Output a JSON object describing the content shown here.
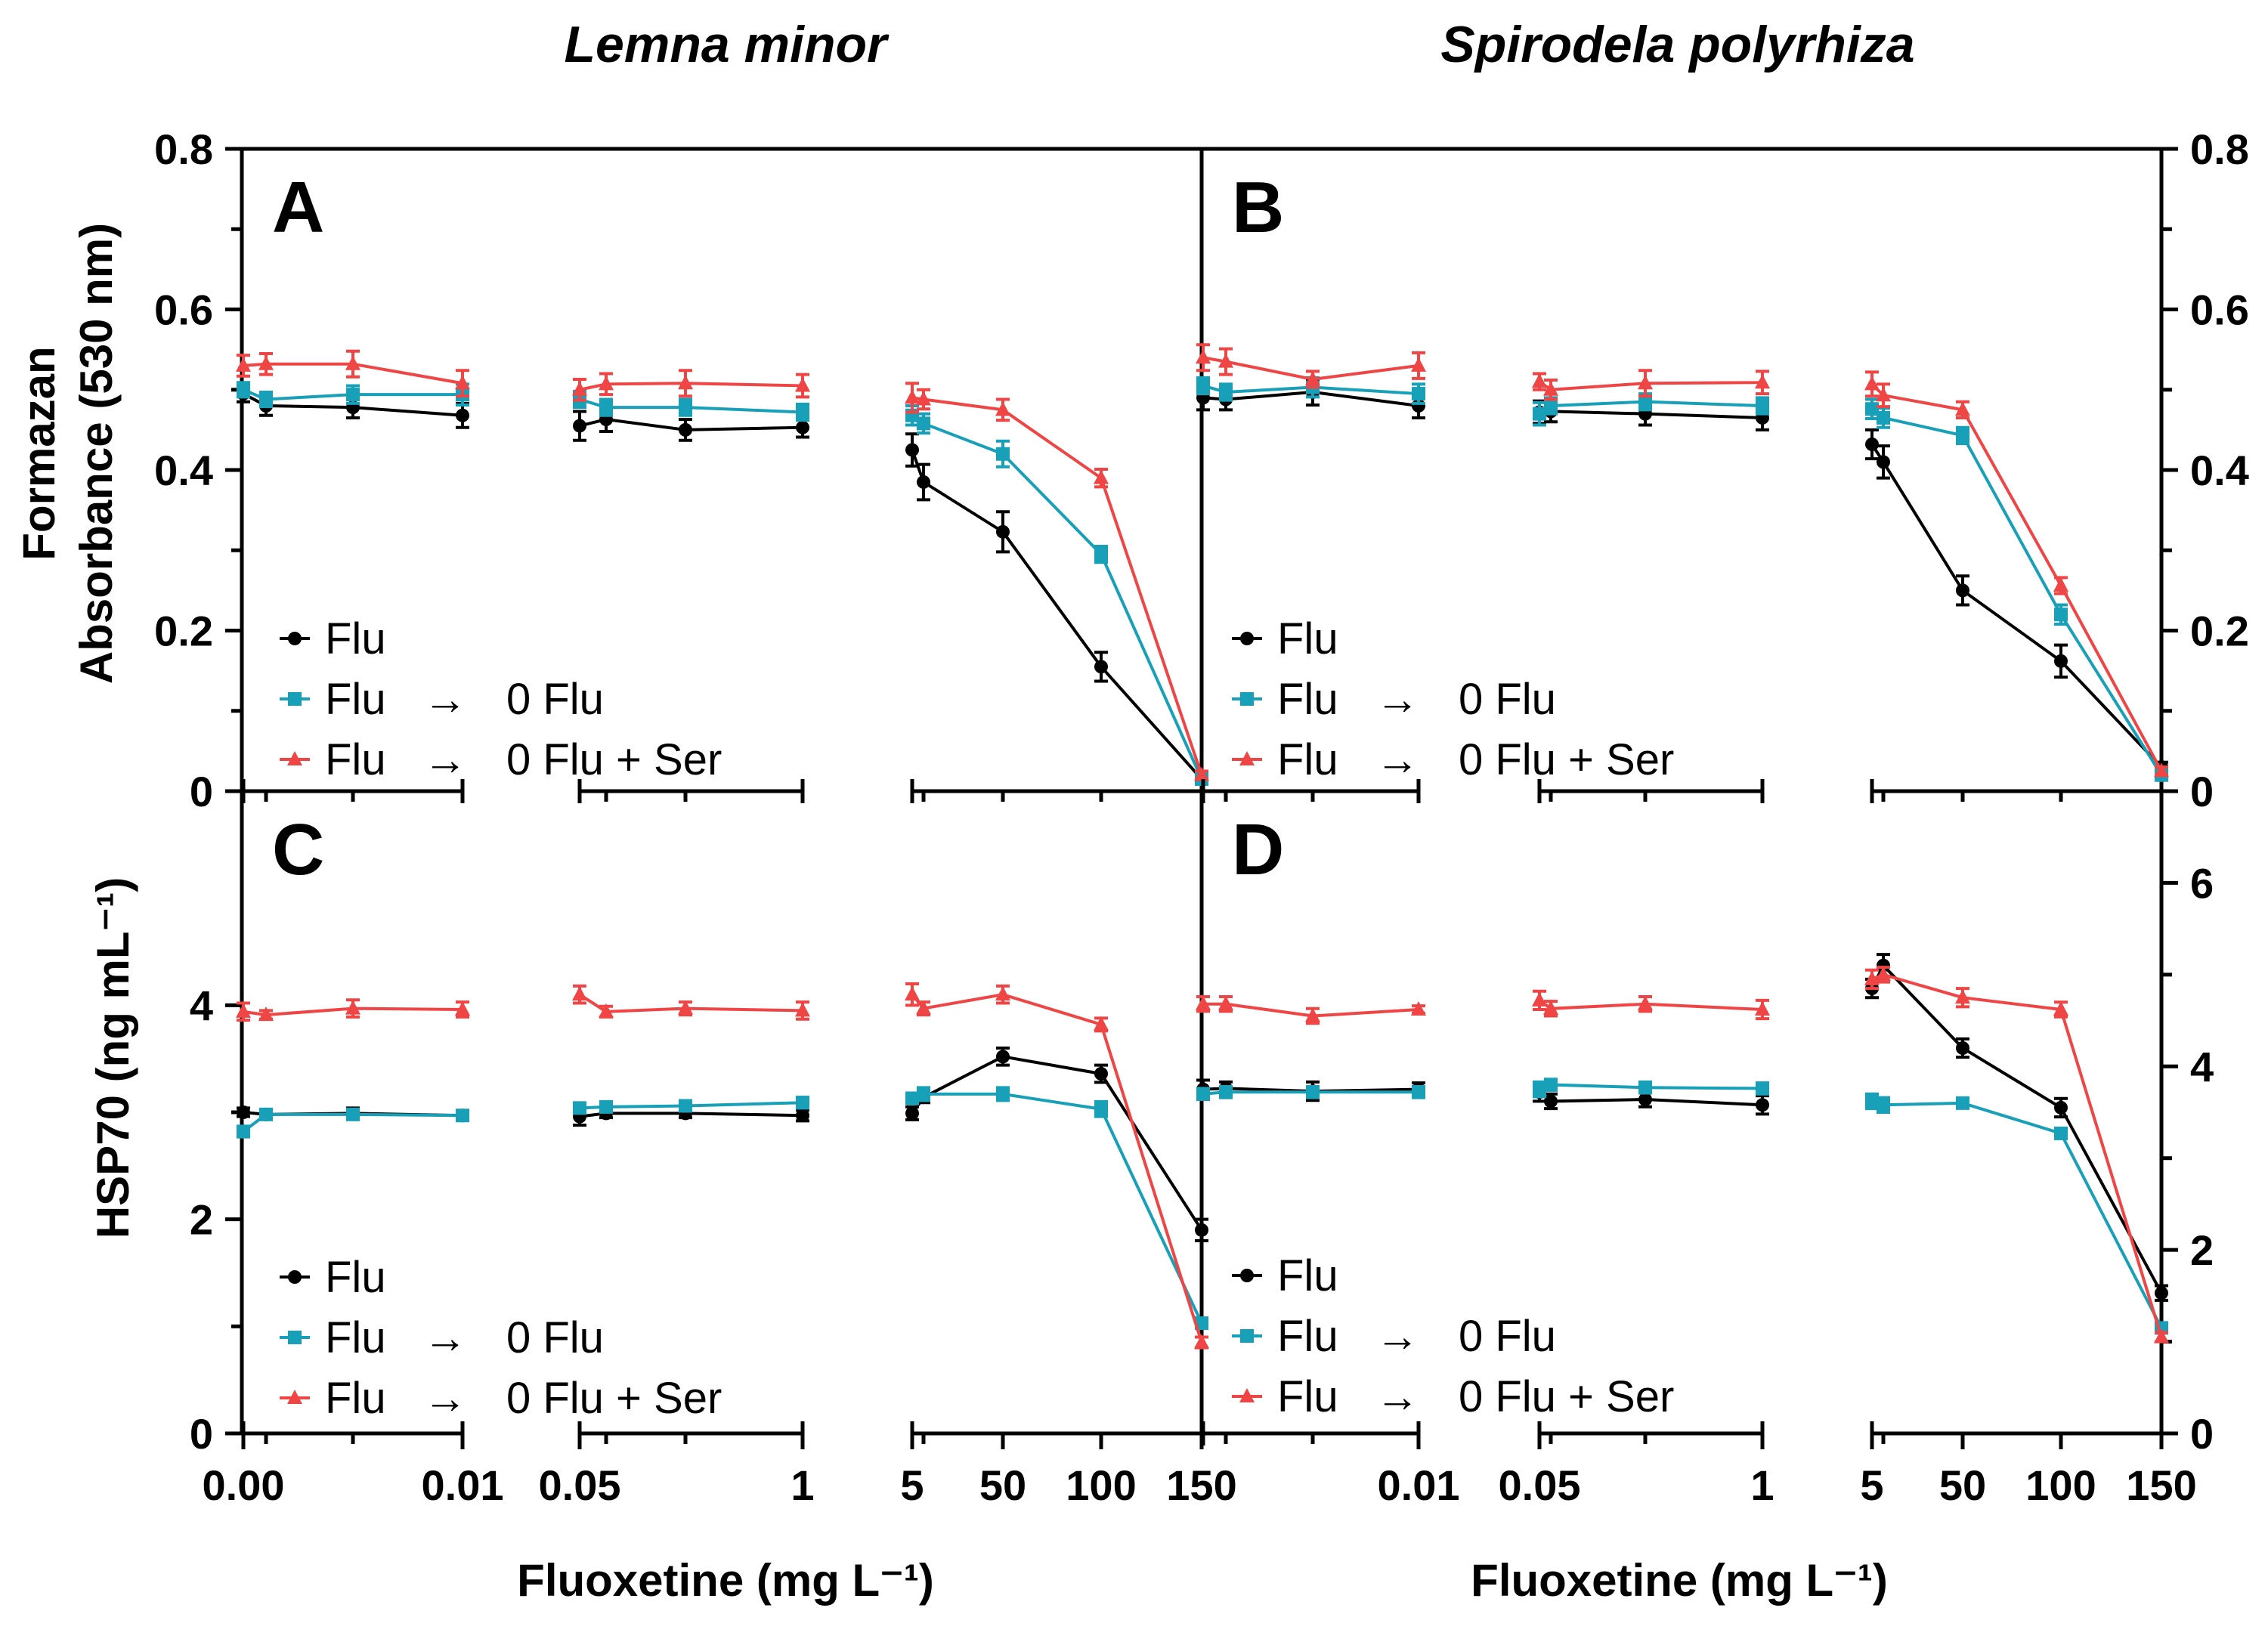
{
  "figure": {
    "left_title": "Lemna minor",
    "right_title": "Spirodela polyrhiza",
    "ylabel_top_line1": "Formazan",
    "ylabel_top_line2": "Absorbance (530 nm)",
    "ylabel_bottom": "HSP70 (ng mL⁻¹)",
    "xlabel_left": "Fluoxetine (mg L⁻¹)",
    "xlabel_right": "Fluoxetine (mg L⁻¹)",
    "legend_entries": [
      {
        "label": "Flu",
        "arrow": "",
        "target": "",
        "color": "#000000",
        "marker": "circle"
      },
      {
        "label": "Flu",
        "arrow": "→",
        "target": "0 Flu",
        "color": "#18a0b8",
        "marker": "square"
      },
      {
        "label": "Flu",
        "arrow": "→",
        "target": "0 Flu + Ser",
        "color": "#ef4545",
        "marker": "triangle"
      }
    ],
    "x_tick_labels": [
      "0.00",
      "0.01",
      "0.05",
      "1",
      "5",
      "50",
      "100",
      "150"
    ],
    "colors": {
      "flu": "#000000",
      "flu_0flu": "#18a0b8",
      "flu_0flu_ser": "#ef4545"
    }
  },
  "chart_data": [
    {
      "panel": "A",
      "type": "line",
      "species": "Lemna minor",
      "x_scale": "broken",
      "ylim": [
        0,
        0.8
      ],
      "yticks": [
        "0",
        "0.2",
        "0.4",
        "0.6",
        "0.8"
      ],
      "yaxis_side": "left",
      "series": [
        {
          "name": "Flu",
          "color": "#000000",
          "marker": "circle",
          "points": [
            [
              0,
              0.495
            ],
            [
              0.001,
              0.48
            ],
            [
              0.005,
              0.478
            ],
            [
              0.01,
              0.468
            ],
            [
              0.05,
              0.455
            ],
            [
              0.1,
              0.463
            ],
            [
              0.5,
              0.45
            ],
            [
              1,
              0.453
            ],
            [
              5,
              0.425
            ],
            [
              10,
              0.385
            ],
            [
              50,
              0.323
            ],
            [
              100,
              0.155
            ],
            [
              150,
              0.015
            ]
          ],
          "err": [
            0.01,
            0.012,
            0.013,
            0.015,
            0.018,
            0.015,
            0.013,
            0.012,
            0.02,
            0.022,
            0.025,
            0.018,
            0.006
          ]
        },
        {
          "name": "Flu → 0 Flu",
          "color": "#18a0b8",
          "marker": "square",
          "points": [
            [
              0,
              0.5
            ],
            [
              0.001,
              0.488
            ],
            [
              0.005,
              0.494
            ],
            [
              0.01,
              0.494
            ],
            [
              0.05,
              0.488
            ],
            [
              0.1,
              0.478
            ],
            [
              0.5,
              0.478
            ],
            [
              1,
              0.472
            ],
            [
              5,
              0.468
            ],
            [
              10,
              0.458
            ],
            [
              50,
              0.42
            ],
            [
              100,
              0.295
            ],
            [
              150,
              0.015
            ]
          ],
          "err": [
            0.009,
            0.009,
            0.011,
            0.013,
            0.01,
            0.01,
            0.01,
            0.01,
            0.012,
            0.012,
            0.016,
            0.01,
            0.005
          ]
        },
        {
          "name": "Flu → 0 Flu + Ser",
          "color": "#ef4545",
          "marker": "triangle",
          "points": [
            [
              0,
              0.53
            ],
            [
              0.001,
              0.532
            ],
            [
              0.005,
              0.532
            ],
            [
              0.01,
              0.508
            ],
            [
              0.05,
              0.5
            ],
            [
              0.1,
              0.507
            ],
            [
              0.5,
              0.508
            ],
            [
              1,
              0.505
            ],
            [
              5,
              0.49
            ],
            [
              10,
              0.488
            ],
            [
              50,
              0.475
            ],
            [
              100,
              0.39
            ],
            [
              150,
              0.02
            ]
          ],
          "err": [
            0.013,
            0.013,
            0.016,
            0.016,
            0.013,
            0.013,
            0.016,
            0.014,
            0.018,
            0.012,
            0.013,
            0.011,
            0.005
          ]
        }
      ]
    },
    {
      "panel": "B",
      "type": "line",
      "species": "Spirodela polyrhiza",
      "x_scale": "broken",
      "ylim": [
        0,
        0.8
      ],
      "yticks": [
        "0",
        "0.2",
        "0.4",
        "0.6",
        "0.8"
      ],
      "yaxis_side": "right",
      "series": [
        {
          "name": "Flu",
          "color": "#000000",
          "marker": "circle",
          "points": [
            [
              0,
              0.49
            ],
            [
              0.001,
              0.488
            ],
            [
              0.005,
              0.497
            ],
            [
              0.01,
              0.48
            ],
            [
              0.05,
              0.472
            ],
            [
              0.1,
              0.473
            ],
            [
              0.5,
              0.47
            ],
            [
              1,
              0.465
            ],
            [
              5,
              0.432
            ],
            [
              10,
              0.41
            ],
            [
              50,
              0.25
            ],
            [
              100,
              0.162
            ],
            [
              150,
              0.03
            ]
          ],
          "err": [
            0.015,
            0.013,
            0.016,
            0.015,
            0.014,
            0.013,
            0.014,
            0.015,
            0.018,
            0.02,
            0.018,
            0.02,
            0.006
          ]
        },
        {
          "name": "Flu → 0 Flu",
          "color": "#18a0b8",
          "marker": "square",
          "points": [
            [
              0,
              0.505
            ],
            [
              0.001,
              0.497
            ],
            [
              0.005,
              0.503
            ],
            [
              0.01,
              0.495
            ],
            [
              0.05,
              0.47
            ],
            [
              0.1,
              0.48
            ],
            [
              0.5,
              0.485
            ],
            [
              1,
              0.48
            ],
            [
              5,
              0.476
            ],
            [
              10,
              0.465
            ],
            [
              50,
              0.443
            ],
            [
              100,
              0.22
            ],
            [
              150,
              0.02
            ]
          ],
          "err": [
            0.01,
            0.01,
            0.012,
            0.012,
            0.014,
            0.01,
            0.01,
            0.01,
            0.012,
            0.012,
            0.01,
            0.012,
            0.005
          ]
        },
        {
          "name": "Flu → 0 Flu + Ser",
          "color": "#ef4545",
          "marker": "triangle",
          "points": [
            [
              0,
              0.54
            ],
            [
              0.001,
              0.535
            ],
            [
              0.005,
              0.513
            ],
            [
              0.01,
              0.53
            ],
            [
              0.05,
              0.51
            ],
            [
              0.1,
              0.5
            ],
            [
              0.5,
              0.508
            ],
            [
              1,
              0.509
            ],
            [
              5,
              0.507
            ],
            [
              10,
              0.493
            ],
            [
              50,
              0.475
            ],
            [
              100,
              0.256
            ],
            [
              150,
              0.025
            ]
          ],
          "err": [
            0.016,
            0.016,
            0.01,
            0.016,
            0.01,
            0.012,
            0.016,
            0.014,
            0.015,
            0.014,
            0.01,
            0.01,
            0.005
          ]
        }
      ]
    },
    {
      "panel": "C",
      "type": "line",
      "species": "Lemna minor",
      "x_scale": "broken",
      "ylim": [
        0,
        6
      ],
      "yticks": [
        "0",
        "2",
        "4"
      ],
      "yaxis_side": "left",
      "series": [
        {
          "name": "Flu",
          "color": "#000000",
          "marker": "circle",
          "points": [
            [
              0,
              3.0
            ],
            [
              0.001,
              2.98
            ],
            [
              0.005,
              2.99
            ],
            [
              0.01,
              2.97
            ],
            [
              0.05,
              2.96
            ],
            [
              0.1,
              2.99
            ],
            [
              0.5,
              2.99
            ],
            [
              1,
              2.97
            ],
            [
              5,
              2.99
            ],
            [
              10,
              3.14
            ],
            [
              50,
              3.52
            ],
            [
              100,
              3.36
            ],
            [
              150,
              1.9
            ]
          ],
          "err": [
            0.04,
            0.04,
            0.05,
            0.04,
            0.08,
            0.04,
            0.04,
            0.05,
            0.06,
            0.05,
            0.08,
            0.08,
            0.1
          ]
        },
        {
          "name": "Flu → 0 Flu",
          "color": "#18a0b8",
          "marker": "square",
          "points": [
            [
              0,
              2.82
            ],
            [
              0.001,
              2.98
            ],
            [
              0.005,
              2.98
            ],
            [
              0.01,
              2.97
            ],
            [
              0.05,
              3.04
            ],
            [
              0.1,
              3.05
            ],
            [
              0.5,
              3.06
            ],
            [
              1,
              3.09
            ],
            [
              5,
              3.13
            ],
            [
              10,
              3.17
            ],
            [
              50,
              3.17
            ],
            [
              100,
              3.03
            ],
            [
              150,
              1.03
            ]
          ],
          "err": [
            0.05,
            0.04,
            0.04,
            0.04,
            0.04,
            0.04,
            0.04,
            0.05,
            0.05,
            0.06,
            0.06,
            0.07,
            0.04
          ]
        },
        {
          "name": "Flu → 0 Flu + Ser",
          "color": "#ef4545",
          "marker": "triangle",
          "points": [
            [
              0,
              3.94
            ],
            [
              0.001,
              3.91
            ],
            [
              0.005,
              3.97
            ],
            [
              0.01,
              3.96
            ],
            [
              0.05,
              4.1
            ],
            [
              0.1,
              3.94
            ],
            [
              0.5,
              3.97
            ],
            [
              1,
              3.95
            ],
            [
              5,
              4.1
            ],
            [
              10,
              3.97
            ],
            [
              50,
              4.1
            ],
            [
              100,
              3.82
            ],
            [
              150,
              0.85
            ]
          ],
          "err": [
            0.08,
            0.04,
            0.08,
            0.07,
            0.08,
            0.05,
            0.06,
            0.08,
            0.1,
            0.06,
            0.08,
            0.06,
            0.05
          ]
        }
      ]
    },
    {
      "panel": "D",
      "type": "line",
      "species": "Spirodela polyrhiza",
      "x_scale": "broken",
      "ylim": [
        0,
        7
      ],
      "yticks": [
        "0",
        "2",
        "4",
        "6"
      ],
      "yaxis_side": "right",
      "series": [
        {
          "name": "Flu",
          "color": "#000000",
          "marker": "circle",
          "points": [
            [
              0,
              3.75
            ],
            [
              0.001,
              3.76
            ],
            [
              0.005,
              3.73
            ],
            [
              0.01,
              3.75
            ],
            [
              0.05,
              3.72
            ],
            [
              0.1,
              3.62
            ],
            [
              0.5,
              3.64
            ],
            [
              1,
              3.58
            ],
            [
              5,
              4.85
            ],
            [
              10,
              5.1
            ],
            [
              50,
              4.2
            ],
            [
              100,
              3.55
            ],
            [
              150,
              1.53
            ]
          ],
          "err": [
            0.1,
            0.07,
            0.1,
            0.07,
            0.1,
            0.08,
            0.08,
            0.1,
            0.1,
            0.12,
            0.1,
            0.1,
            0.08
          ]
        },
        {
          "name": "Flu → 0 Flu",
          "color": "#18a0b8",
          "marker": "square",
          "points": [
            [
              0,
              3.7
            ],
            [
              0.001,
              3.72
            ],
            [
              0.005,
              3.72
            ],
            [
              0.01,
              3.72
            ],
            [
              0.05,
              3.75
            ],
            [
              0.1,
              3.8
            ],
            [
              0.5,
              3.77
            ],
            [
              1,
              3.76
            ],
            [
              5,
              3.62
            ],
            [
              10,
              3.58
            ],
            [
              50,
              3.6
            ],
            [
              100,
              3.27
            ],
            [
              150,
              1.15
            ]
          ],
          "err": [
            0.06,
            0.06,
            0.06,
            0.06,
            0.08,
            0.06,
            0.06,
            0.06,
            0.08,
            0.08,
            0.04,
            0.04,
            0.05
          ]
        },
        {
          "name": "Flu → 0 Flu + Ser",
          "color": "#ef4545",
          "marker": "triangle",
          "points": [
            [
              0,
              4.68
            ],
            [
              0.001,
              4.68
            ],
            [
              0.005,
              4.55
            ],
            [
              0.01,
              4.62
            ],
            [
              0.05,
              4.72
            ],
            [
              0.1,
              4.63
            ],
            [
              0.5,
              4.68
            ],
            [
              1,
              4.62
            ],
            [
              5,
              4.95
            ],
            [
              10,
              5.0
            ],
            [
              50,
              4.75
            ],
            [
              100,
              4.62
            ],
            [
              150,
              1.05
            ]
          ],
          "err": [
            0.08,
            0.08,
            0.08,
            0.04,
            0.1,
            0.08,
            0.08,
            0.1,
            0.1,
            0.08,
            0.1,
            0.08,
            0.05
          ]
        }
      ]
    }
  ]
}
